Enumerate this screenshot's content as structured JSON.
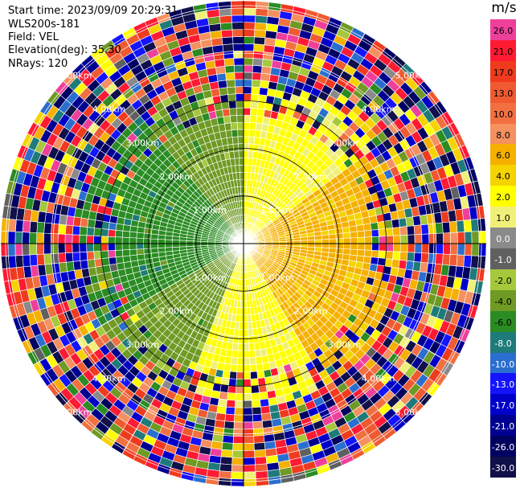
{
  "header": {
    "start_time": "Start time: 2023/09/09 20:29:31",
    "station": "WLS200s-181",
    "field": "Field: VEL",
    "elevation": "Elevation(deg): 35.30",
    "nrays": "NRays: 120"
  },
  "colorbar": {
    "unit": "m/s",
    "levels": [
      "26.0",
      "21.0",
      "17.0",
      "13.0",
      "10.0",
      "8.0",
      "6.0",
      "4.0",
      "2.0",
      "1.0",
      "0.0",
      "-1.0",
      "-2.0",
      "-4.0",
      "-6.0",
      "-8.0",
      "-10.0",
      "-13.0",
      "-17.0",
      "-21.0",
      "-26.0",
      "-30.0"
    ],
    "colors": [
      "#ee3f9b",
      "#ff1a33",
      "#f03a1e",
      "#f05a30",
      "#f27040",
      "#f59060",
      "#f5b000",
      "#f5d300",
      "#ffff00",
      "#f0f078",
      "#8a8a8a",
      "#606060",
      "#a5c83c",
      "#6f9a24",
      "#2a8c22",
      "#1f7a7a",
      "#2a6ecf",
      "#1414ff",
      "#0000c8",
      "#000090",
      "#000060",
      "#10104a"
    ]
  },
  "chart_data": {
    "type": "heatmap",
    "projection": "polar PPI",
    "nrays": 120,
    "field": "VEL",
    "units": "m/s",
    "range_ring_labels": [
      "1.00km",
      "2.00km",
      "3.00km",
      "4.00km",
      "5.00km"
    ],
    "range_rings_km": [
      1,
      2,
      3,
      4,
      5
    ],
    "max_range_km": 5.1,
    "color_levels": [
      -30,
      -26,
      -21,
      -17,
      -13,
      -10,
      -8,
      -6,
      -4,
      -2,
      -1,
      0,
      1,
      2,
      4,
      6,
      8,
      10,
      13,
      17,
      21,
      26
    ],
    "sector_pattern": [
      {
        "azimuth_from": 0,
        "azimuth_to": 55,
        "inner_velocity": 2.5
      },
      {
        "azimuth_from": 55,
        "azimuth_to": 150,
        "inner_velocity": 6.5
      },
      {
        "azimuth_from": 150,
        "azimuth_to": 200,
        "inner_velocity": 2.5
      },
      {
        "azimuth_from": 200,
        "azimuth_to": 240,
        "inner_velocity": -3
      },
      {
        "azimuth_from": 240,
        "azimuth_to": 320,
        "inner_velocity": -5
      },
      {
        "azimuth_from": 320,
        "azimuth_to": 360,
        "inner_velocity": -3
      }
    ],
    "noisy_beyond_km": 3.3
  }
}
